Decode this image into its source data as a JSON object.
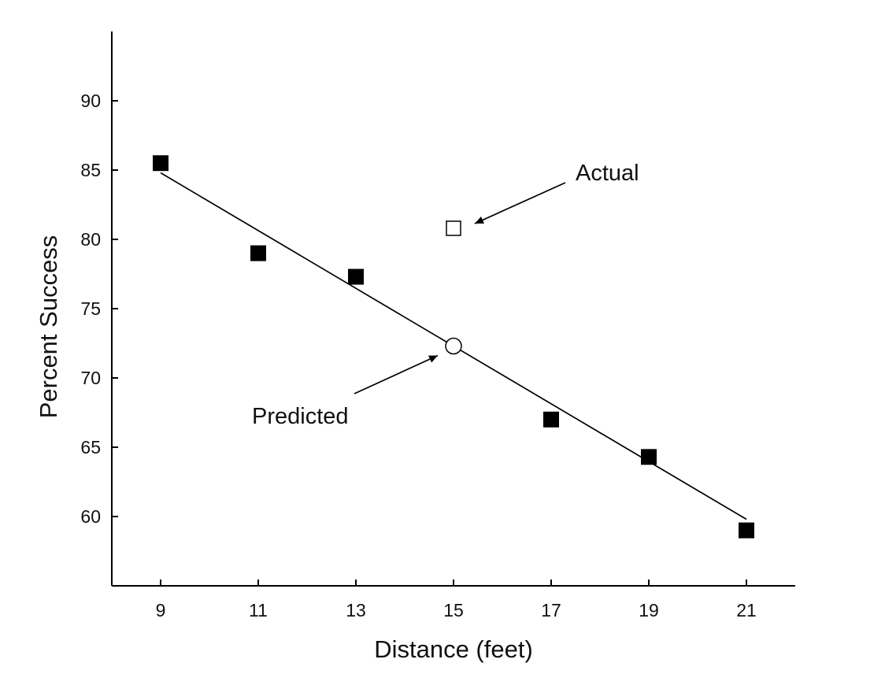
{
  "chart_data": {
    "type": "scatter",
    "title": "",
    "xlabel": "Distance (feet)",
    "ylabel": "Percent Success",
    "xlim": [
      8,
      22
    ],
    "ylim": [
      55,
      95
    ],
    "x_ticks": [
      9,
      11,
      13,
      15,
      17,
      19,
      21
    ],
    "y_ticks": [
      60,
      65,
      70,
      75,
      80,
      85,
      90
    ],
    "grid": false,
    "series": [
      {
        "points": [
          {
            "x": 9,
            "y": 85.5
          },
          {
            "x": 11,
            "y": 79.0
          },
          {
            "x": 13,
            "y": 77.3
          },
          {
            "x": 17,
            "y": 67.0
          },
          {
            "x": 19,
            "y": 64.3
          },
          {
            "x": 21,
            "y": 59.0
          }
        ],
        "marker": "filled-square",
        "color": "#000000"
      }
    ],
    "trend_line": {
      "x": [
        9,
        21
      ],
      "y": [
        84.8,
        59.8
      ],
      "color": "#000000"
    },
    "highlighted_points": [
      {
        "label": "Actual",
        "x": 15,
        "y": 80.8,
        "marker": "open-square"
      },
      {
        "label": "Predicted",
        "x": 15,
        "y": 72.3,
        "marker": "open-circle"
      }
    ]
  }
}
